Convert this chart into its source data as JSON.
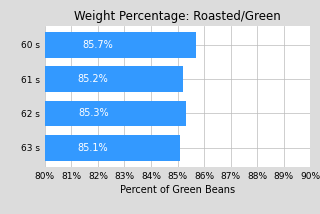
{
  "title": "Weight Percentage: Roasted/Green",
  "xlabel": "Percent of Green Beans",
  "categories": [
    "60 s",
    "61 s",
    "62 s",
    "63 s"
  ],
  "values": [
    85.7,
    85.2,
    85.3,
    85.1
  ],
  "bar_color": "#3399ff",
  "label_color": "white",
  "xlim": [
    80,
    90
  ],
  "xticks": [
    80,
    81,
    82,
    83,
    84,
    85,
    86,
    87,
    88,
    89,
    90
  ],
  "title_fontsize": 8.5,
  "xlabel_fontsize": 7,
  "tick_fontsize": 6.5,
  "bar_label_fontsize": 7,
  "background_color": "#dcdcdc",
  "axes_background": "#ffffff",
  "bar_height": 0.75,
  "figsize": [
    3.2,
    2.14
  ],
  "dpi": 100
}
